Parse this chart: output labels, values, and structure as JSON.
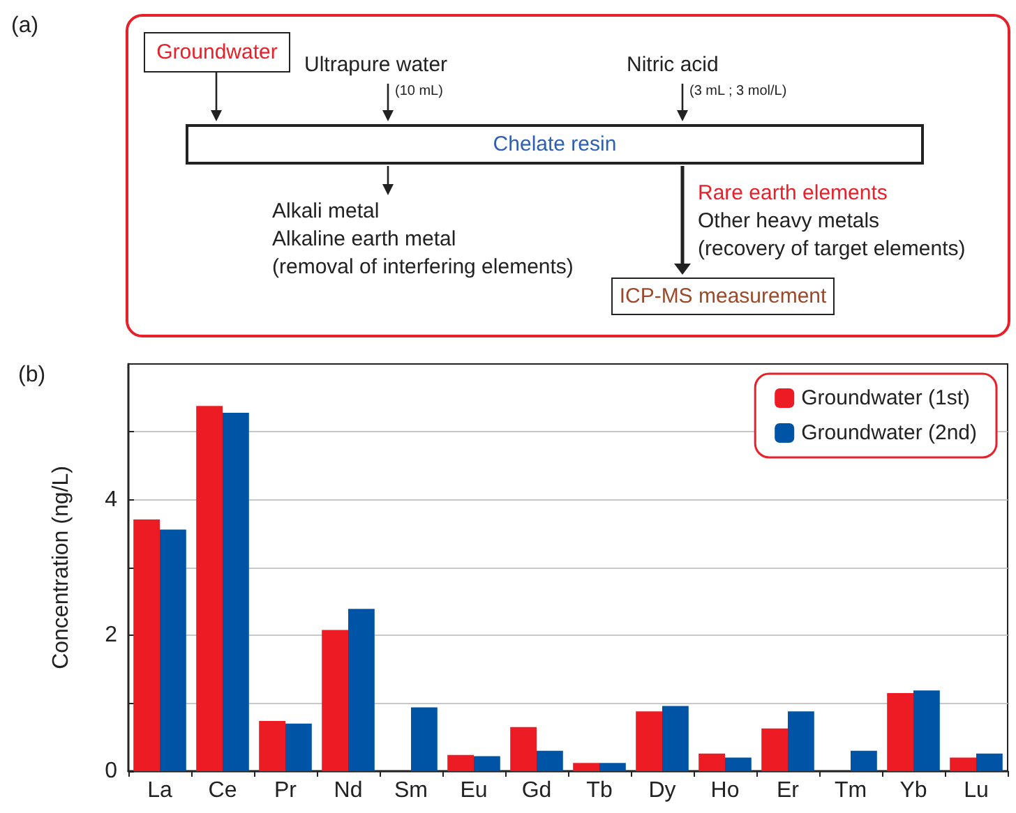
{
  "chart_data": [
    {
      "type": "other",
      "title": "(a)",
      "annotations": [
        "Groundwater",
        "Ultrapure water",
        "(10 mL)",
        "Nitric acid",
        "(3 mL ; 3 mol/L)",
        "Chelate resin",
        "Alkali metal",
        "Alkaline earth metal",
        "(removal of interfering elements)",
        "Rare earth elements",
        "Other heavy metals",
        "(recovery of target elements)",
        "ICP-MS measurement"
      ]
    },
    {
      "type": "bar",
      "title": "(b)",
      "ylabel": "Concentration (ng/L)",
      "categories": [
        "La",
        "Ce",
        "Pr",
        "Nd",
        "Sm",
        "Eu",
        "Gd",
        "Tb",
        "Dy",
        "Ho",
        "Er",
        "Tm",
        "Yb",
        "Lu"
      ],
      "series": [
        {
          "name": "Groundwater (1st)",
          "color": "#ed1c24",
          "values": [
            3.71,
            5.38,
            0.74,
            2.08,
            null,
            0.24,
            0.65,
            0.12,
            0.88,
            0.26,
            0.63,
            null,
            1.15,
            0.2
          ]
        },
        {
          "name": "Groundwater (2nd)",
          "color": "#0054a6",
          "values": [
            3.56,
            5.28,
            0.7,
            2.39,
            0.94,
            0.22,
            0.3,
            0.12,
            0.96,
            0.2,
            0.88,
            0.3,
            1.19,
            0.26
          ]
        }
      ],
      "ylim": [
        0,
        6
      ],
      "yticks": [
        0,
        {
          "value": 1,
          "label": null
        },
        2,
        {
          "value": 3,
          "label": null
        },
        4,
        {
          "value": 5,
          "label": null
        }
      ],
      "grid": "y",
      "legend": "top right"
    }
  ]
}
